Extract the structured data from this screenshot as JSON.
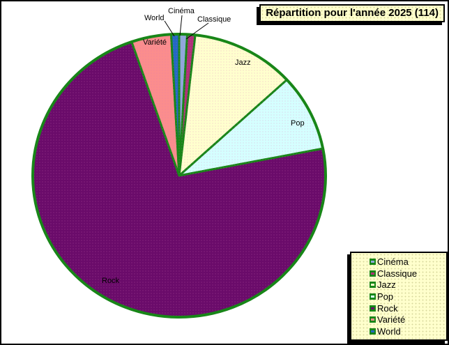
{
  "title": "Répartition pour l'année  2025 (114)",
  "chart_data": {
    "type": "pie",
    "title": "Répartition pour l'année 2025 (114)",
    "total": 114,
    "categories": [
      "Cinéma",
      "Classique",
      "Jazz",
      "Pop",
      "Rock",
      "Variété",
      "World"
    ],
    "values": [
      1,
      1,
      13,
      10,
      83,
      5,
      1
    ],
    "colors": [
      "#8FA8DC",
      "#B03078",
      "#FFFFCE",
      "#D5FFFF",
      "#6A0B6A",
      "#FB8D8D",
      "#2268C4"
    ],
    "outline_color": "#188618",
    "start_angle_deg": 0,
    "direction": "clockwise",
    "legend_position": "bottom-right",
    "labels_inside": [
      "Jazz",
      "Pop",
      "Rock",
      "Variété"
    ],
    "labels_callout": [
      "World",
      "Cinéma",
      "Classique"
    ]
  },
  "legend": {
    "items": [
      "Cinéma",
      "Classique",
      "Jazz",
      "Pop",
      "Rock",
      "Variété",
      "World"
    ]
  }
}
